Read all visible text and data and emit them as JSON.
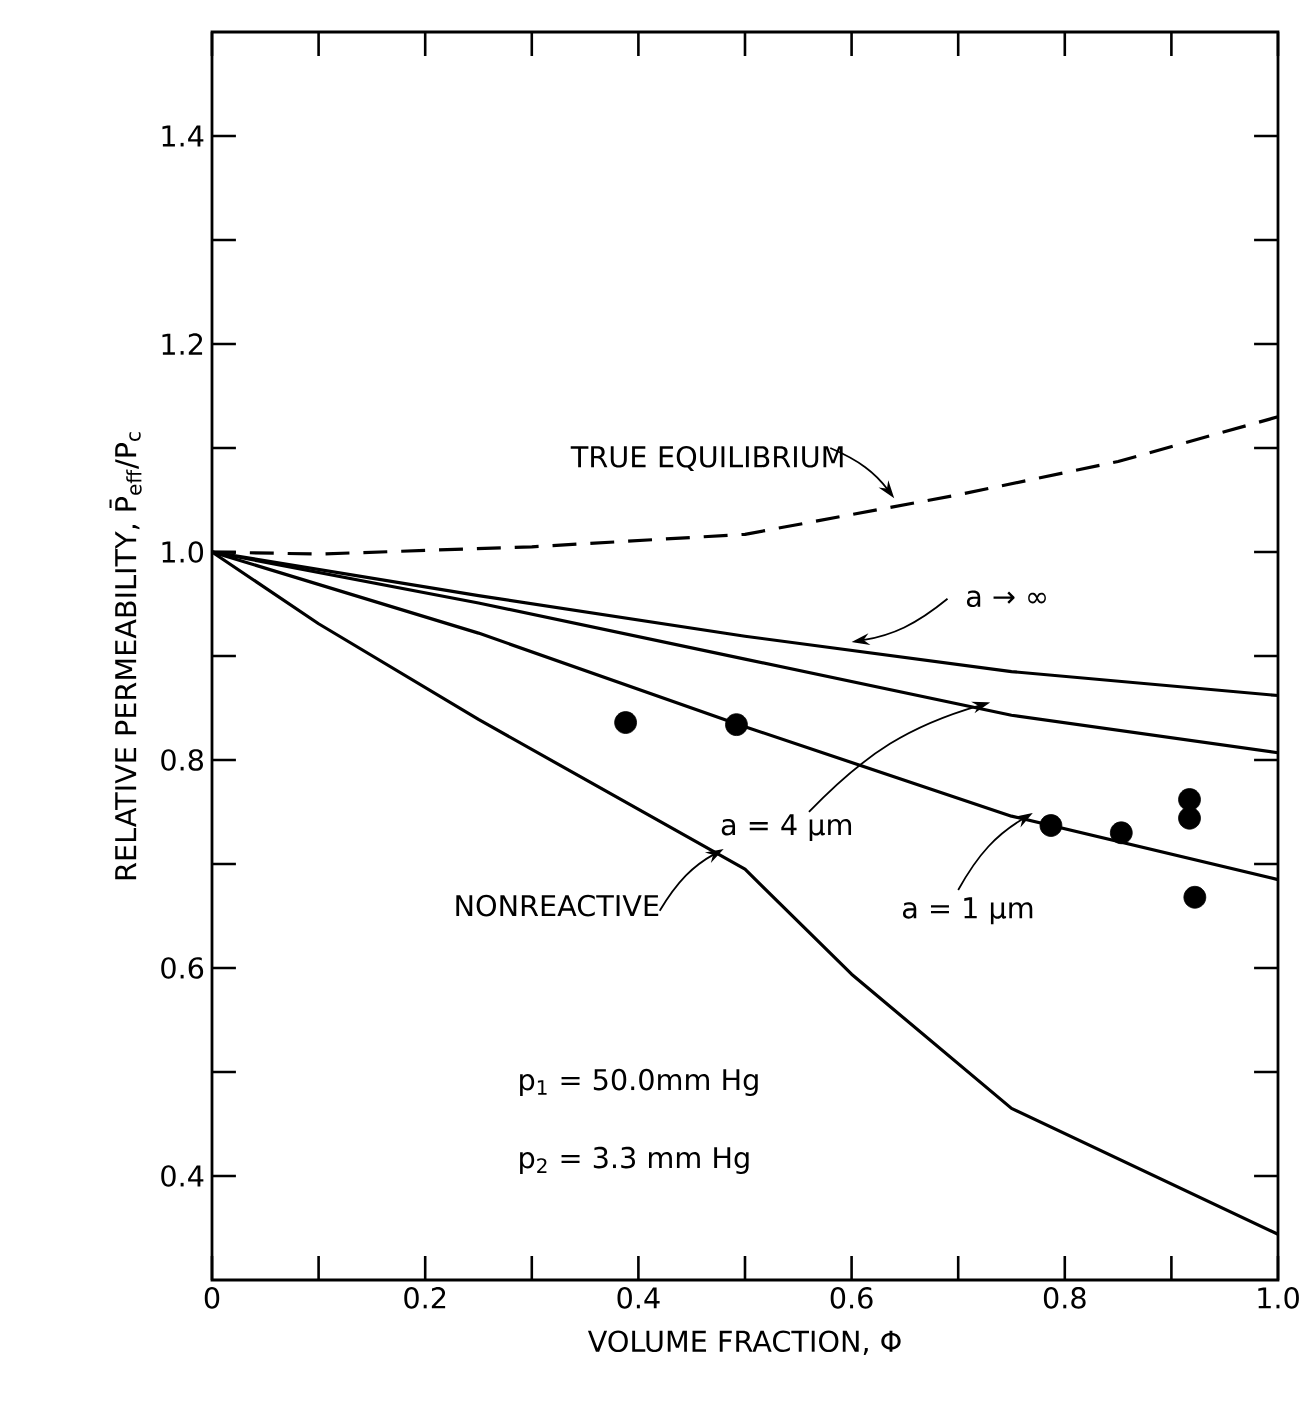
{
  "chart_data": {
    "type": "line",
    "xlabel": "VOLUME FRACTION, Φ",
    "ylabel": "RELATIVE PERMEABILITY, P̄$_{eff}$/P$_{c}$",
    "xlim": [
      0,
      1
    ],
    "ylim": [
      0.3,
      1.5
    ],
    "xticks": [
      0,
      {
        "value": 0.1,
        "label": null
      },
      0.2,
      {
        "value": 0.3,
        "label": null
      },
      0.4,
      {
        "value": 0.5,
        "label": null
      },
      0.6,
      {
        "value": 0.7,
        "label": null
      },
      0.8,
      {
        "value": 0.9,
        "label": null
      },
      {
        "value": 1,
        "label": "1.0"
      }
    ],
    "yticks": [
      0.4,
      {
        "value": 0.5,
        "label": null
      },
      0.6,
      {
        "value": 0.7,
        "label": null
      },
      0.8,
      {
        "value": 0.9,
        "label": null
      },
      {
        "value": 1,
        "label": "1.0"
      },
      {
        "value": 1.1,
        "label": null
      },
      1.2,
      {
        "value": 1.3,
        "label": null
      },
      1.4
    ],
    "series": [
      {
        "name": "TRUE EQUILIBRIUM",
        "color": "#000000",
        "line_style": "dashed",
        "marker": "none",
        "x": [
          0,
          0.1,
          0.3,
          0.5,
          0.7,
          0.85,
          1.0
        ],
        "values": [
          1.0,
          0.998,
          1.005,
          1.017,
          1.055,
          1.087,
          1.13
        ]
      },
      {
        "name": "a → ∞",
        "color": "#000000",
        "line_style": "solid",
        "marker": "none",
        "x": [
          0,
          0.25,
          0.5,
          0.75,
          1.0
        ],
        "values": [
          1.0,
          0.958,
          0.919,
          0.885,
          0.862
        ]
      },
      {
        "name": "a = 4 μm",
        "color": "#000000",
        "line_style": "solid",
        "marker": "none",
        "x": [
          0,
          0.25,
          0.5,
          0.75,
          1.0
        ],
        "values": [
          1.0,
          0.951,
          0.897,
          0.843,
          0.807
        ]
      },
      {
        "name": "a = 1 μm",
        "color": "#000000",
        "line_style": "solid",
        "marker": "none",
        "x": [
          0,
          0.25,
          0.5,
          0.75,
          1.0
        ],
        "values": [
          1.0,
          0.922,
          0.832,
          0.746,
          0.685
        ]
      },
      {
        "name": "NONREACTIVE",
        "color": "#000000",
        "line_style": "solid",
        "marker": "none",
        "x": [
          0,
          0.1,
          0.25,
          0.5,
          0.6,
          0.75,
          1.0
        ],
        "values": [
          1.0,
          0.931,
          0.839,
          0.695,
          0.594,
          0.465,
          0.344
        ]
      },
      {
        "type": "scatter",
        "color": "#000000",
        "marker": "circle",
        "x": [
          0.388,
          0.492,
          0.787,
          0.853,
          0.917,
          0.917,
          0.922
        ],
        "values": [
          0.836,
          0.834,
          0.737,
          0.73,
          0.762,
          0.744,
          0.668
        ]
      }
    ],
    "annotations": [
      "p$_{1}$ = 50.0mm Hg",
      "p$_{2}$ = 3.3 mm Hg"
    ]
  }
}
